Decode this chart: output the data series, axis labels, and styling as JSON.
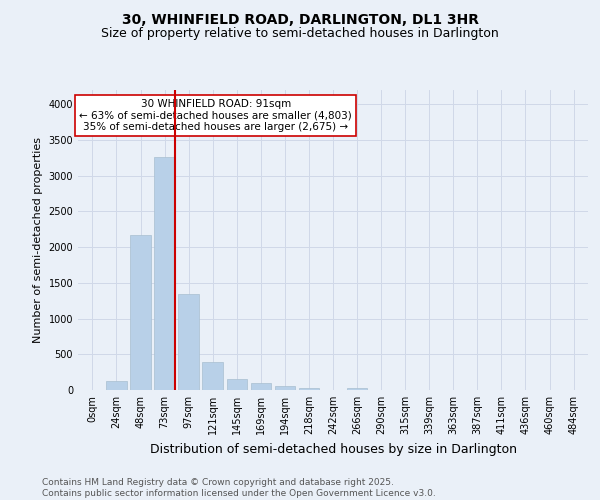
{
  "title": "30, WHINFIELD ROAD, DARLINGTON, DL1 3HR",
  "subtitle": "Size of property relative to semi-detached houses in Darlington",
  "xlabel": "Distribution of semi-detached houses by size in Darlington",
  "ylabel": "Number of semi-detached properties",
  "bar_labels": [
    "0sqm",
    "24sqm",
    "48sqm",
    "73sqm",
    "97sqm",
    "121sqm",
    "145sqm",
    "169sqm",
    "194sqm",
    "218sqm",
    "242sqm",
    "266sqm",
    "290sqm",
    "315sqm",
    "339sqm",
    "363sqm",
    "387sqm",
    "411sqm",
    "436sqm",
    "460sqm",
    "484sqm"
  ],
  "bar_values": [
    0,
    120,
    2175,
    3260,
    1350,
    390,
    160,
    100,
    50,
    30,
    0,
    30,
    0,
    0,
    0,
    0,
    0,
    0,
    0,
    0,
    0
  ],
  "bar_color": "#b8d0e8",
  "bar_edge_color": "#a8bfd0",
  "marker_bin_index": 3,
  "vline_color": "#cc0000",
  "annotation_text": "30 WHINFIELD ROAD: 91sqm\n← 63% of semi-detached houses are smaller (4,803)\n35% of semi-detached houses are larger (2,675) →",
  "annotation_box_color": "#ffffff",
  "annotation_box_edge": "#cc0000",
  "ylim": [
    0,
    4200
  ],
  "yticks": [
    0,
    500,
    1000,
    1500,
    2000,
    2500,
    3000,
    3500,
    4000
  ],
  "grid_color": "#d0d8e8",
  "background_color": "#eaf0f8",
  "footer": "Contains HM Land Registry data © Crown copyright and database right 2025.\nContains public sector information licensed under the Open Government Licence v3.0.",
  "title_fontsize": 10,
  "subtitle_fontsize": 9,
  "xlabel_fontsize": 9,
  "ylabel_fontsize": 8,
  "tick_fontsize": 7,
  "annot_fontsize": 7.5,
  "footer_fontsize": 6.5
}
